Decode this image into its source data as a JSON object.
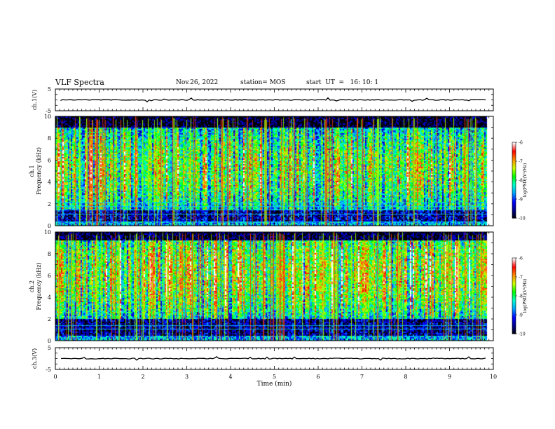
{
  "header": {
    "title": "VLF Spectra",
    "date": "Nov.26, 2022",
    "station": "station= MOS",
    "start_ut": "start  UT  =   16: 10: 1"
  },
  "colorbar": {
    "label": "log(PSD)(V²/Hz)",
    "ticks": [
      -6,
      -7,
      -8,
      -9,
      -10
    ],
    "colors": [
      "#000000",
      "#00008c",
      "#0000ff",
      "#00a0ff",
      "#00ffcc",
      "#00ff00",
      "#c8ff00",
      "#ff8c00",
      "#ff0000",
      "#ffffff"
    ]
  },
  "chart_data": [
    {
      "type": "line",
      "panel": "ch1-waveform",
      "ylabel": "ch.1(V)",
      "ylim": [
        -5,
        5
      ],
      "yticks": [
        5,
        -5
      ],
      "x": [
        0,
        10
      ],
      "y": [
        0,
        0
      ]
    },
    {
      "type": "heatmap",
      "panel": "ch1-spectrogram",
      "ylabel_top": "ch.1",
      "ylabel": "Frequency  (kHz)",
      "ylim": [
        0,
        10
      ],
      "yticks": [
        0,
        2,
        4,
        6,
        8,
        10
      ],
      "xlim": [
        0,
        10
      ],
      "xend": 9.85,
      "zlim": [
        -10,
        -6
      ]
    },
    {
      "type": "heatmap",
      "panel": "ch2-spectrogram",
      "ylabel_top": "ch.2",
      "ylabel": "Frequency  (kHz)",
      "ylim": [
        0,
        10
      ],
      "yticks": [
        0,
        2,
        4,
        6,
        8,
        10
      ],
      "xlim": [
        0,
        10
      ],
      "xend": 9.85,
      "zlim": [
        -10,
        -6
      ]
    },
    {
      "type": "line",
      "panel": "ch3-waveform",
      "ylabel": "ch.3(V)",
      "ylim": [
        -5,
        5
      ],
      "yticks": [
        5,
        -5
      ],
      "x": [
        0,
        10
      ],
      "y": [
        0,
        0
      ]
    }
  ],
  "xaxis": {
    "label": "Time  (min)",
    "ticks": [
      0,
      1,
      2,
      3,
      4,
      5,
      6,
      7,
      8,
      9,
      10
    ],
    "range": [
      0,
      10
    ]
  }
}
